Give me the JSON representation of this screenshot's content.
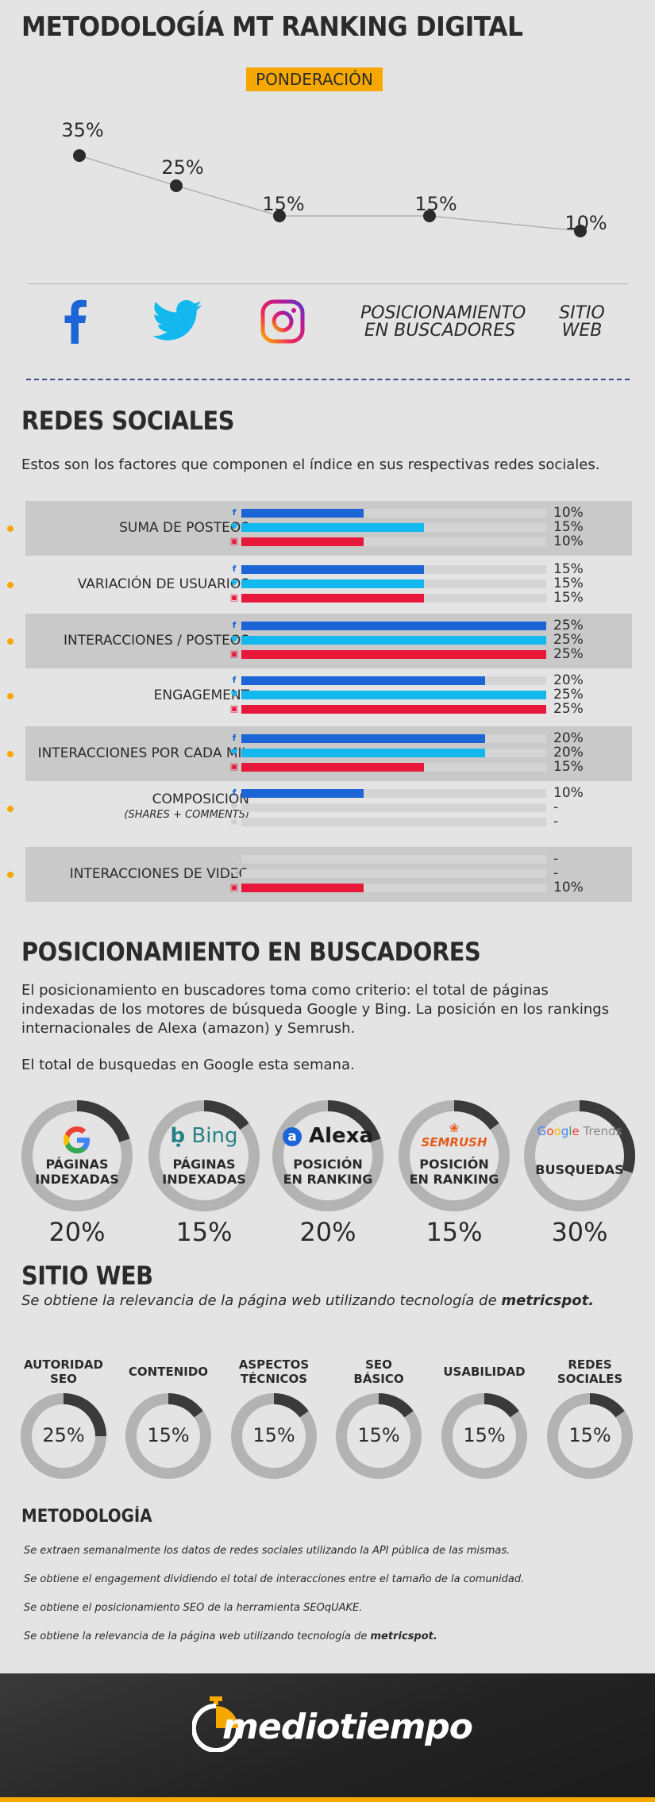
{
  "title": "METODOLOGÍA MT RANKING DIGITAL",
  "ponderacion": {
    "badge": "PONDERACIÓN",
    "points": [
      {
        "label": "35%",
        "value": 35
      },
      {
        "label": "25%",
        "value": 25
      },
      {
        "label": "15%",
        "value": 15
      },
      {
        "label": "15%",
        "value": 15
      },
      {
        "label": "10%",
        "value": 10
      }
    ],
    "icons": [
      {
        "name": "facebook-icon",
        "label": ""
      },
      {
        "name": "twitter-icon",
        "label": ""
      },
      {
        "name": "instagram-icon",
        "label": ""
      },
      {
        "name": "search-ranking-label",
        "line1": "POSICIONAMIENTO",
        "line2": "EN BUSCADORES"
      },
      {
        "name": "website-label",
        "line1": "SITIO",
        "line2": "WEB"
      }
    ]
  },
  "redes": {
    "title": "REDES SOCIALES",
    "desc": "Estos son los factores que componen el índice en sus respectivas redes sociales.",
    "colors": {
      "facebook": "#1b65d6",
      "twitter": "#12b8ee",
      "instagram": "#e8183a"
    },
    "rows": [
      {
        "label": "SUMA DE POSTEOS",
        "sub": "",
        "fb": "10%",
        "tw": "15%",
        "ig": "10%",
        "fbv": 10,
        "twv": 15,
        "igv": 10
      },
      {
        "label": "VARIACIÓN DE USUARIOS",
        "sub": "",
        "fb": "15%",
        "tw": "15%",
        "ig": "15%",
        "fbv": 15,
        "twv": 15,
        "igv": 15
      },
      {
        "label": "INTERACCIONES / POSTEOS",
        "sub": "",
        "fb": "25%",
        "tw": "25%",
        "ig": "25%",
        "fbv": 25,
        "twv": 25,
        "igv": 25
      },
      {
        "label": "ENGAGEMENT",
        "sub": "",
        "fb": "20%",
        "tw": "25%",
        "ig": "25%",
        "fbv": 20,
        "twv": 25,
        "igv": 25
      },
      {
        "label": "INTERACCIONES POR CADA MIL",
        "sub": "",
        "fb": "20%",
        "tw": "20%",
        "ig": "15%",
        "fbv": 20,
        "twv": 20,
        "igv": 15
      },
      {
        "label": "COMPOSICIÓN",
        "sub": "(SHARES + COMMENTS)",
        "fb": "10%",
        "tw": "-",
        "ig": "-",
        "fbv": 10,
        "twv": 0,
        "igv": 0
      },
      {
        "label": "INTERACCIONES DE VIDEO",
        "sub": "",
        "fb": "-",
        "tw": "-",
        "ig": "10%",
        "fbv": 0,
        "twv": 0,
        "igv": 10
      }
    ]
  },
  "buscadores": {
    "title": "POSICIONAMIENTO EN BUSCADORES",
    "desc": "El posicionamiento en buscadores toma como criterio: el total de páginas indexadas de los motores de búsqueda Google y Bing. La posición en los rankings internacionales de Alexa (amazon) y Semrush.",
    "desc2": "El total de busquedas en Google esta semana.",
    "items": [
      {
        "logo": "G",
        "logo_name": "google-logo",
        "line1": "PÁGINAS",
        "line2": "INDEXADAS",
        "pct": "20%",
        "value": 20
      },
      {
        "logo": "Bing",
        "logo_name": "bing-logo",
        "line1": "PÁGINAS",
        "line2": "INDEXADAS",
        "pct": "15%",
        "value": 15
      },
      {
        "logo": "Alexa",
        "logo_name": "alexa-logo",
        "line1": "POSICIÓN",
        "line2": "EN RANKING",
        "pct": "20%",
        "value": 20
      },
      {
        "logo": "SEMRUSH",
        "logo_name": "semrush-logo",
        "line1": "POSICIÓN",
        "line2": "EN RANKING",
        "pct": "15%",
        "value": 15
      },
      {
        "logo": "Google Trends",
        "logo_name": "google-trends-logo",
        "line1": "BUSQUEDAS",
        "line2": "",
        "pct": "30%",
        "value": 30
      }
    ]
  },
  "sitio": {
    "title": "SITIO WEB",
    "desc_pre": "Se obtiene la relevancia de la página web utilizando tecnología de ",
    "desc_bold": "metricspot.",
    "items": [
      {
        "line1": "AUTORIDAD",
        "line2": "SEO",
        "pct": "25%",
        "value": 25
      },
      {
        "line1": "CONTENIDO",
        "line2": "",
        "pct": "15%",
        "value": 15
      },
      {
        "line1": "ASPECTOS",
        "line2": "TÉCNICOS",
        "pct": "15%",
        "value": 15
      },
      {
        "line1": "SEO",
        "line2": "BÁSICO",
        "pct": "15%",
        "value": 15
      },
      {
        "line1": "USABILIDAD",
        "line2": "",
        "pct": "15%",
        "value": 15
      },
      {
        "line1": "REDES",
        "line2": "SOCIALES",
        "pct": "15%",
        "value": 15
      }
    ]
  },
  "metodologia": {
    "title": "METODOLOGÍA",
    "lines": [
      "Se extraen semanalmente los datos de redes sociales utilizando la API pública de las mismas.",
      "Se obtiene el engagement dividiendo el total de interacciones entre el tamaño de la comunidad.",
      "Se obtiene el posicionamiento SEO de la herramienta SEOqUAKE."
    ],
    "last_pre": "Se obtiene la relevancia de la página web utilizando tecnología de ",
    "last_bold": "metricspot."
  },
  "footer": {
    "brand": "mediotiempo"
  }
}
